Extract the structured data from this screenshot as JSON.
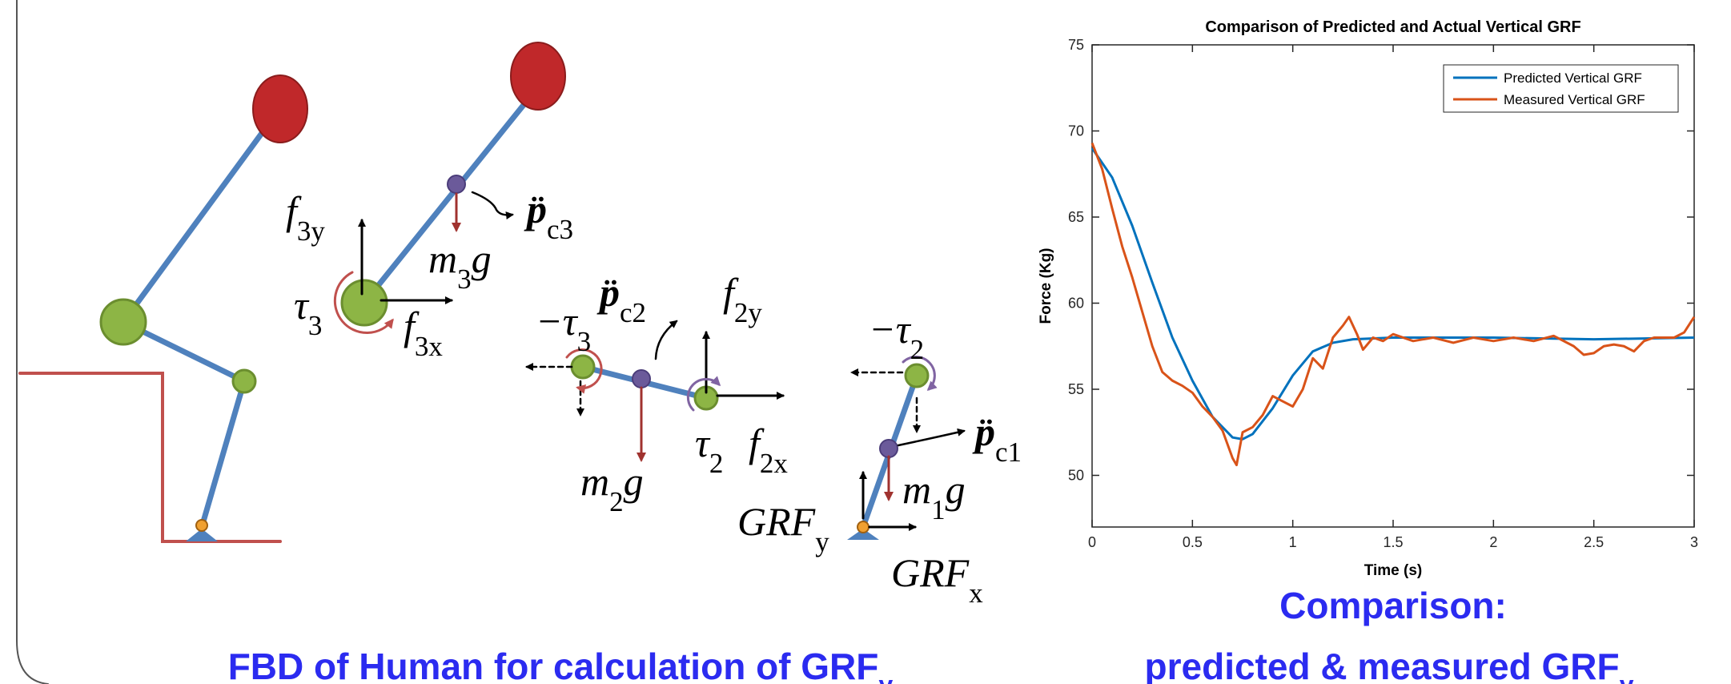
{
  "diagram": {
    "labels": [
      {
        "main": "f",
        "sub": "3y"
      },
      {
        "main": "τ",
        "sub": "3"
      },
      {
        "main": "f",
        "sub": "3x"
      },
      {
        "main": "m",
        "sub": "3",
        "after": "g"
      },
      {
        "main": "p̈",
        "sub": "c3"
      },
      {
        "main": "−τ",
        "sub": "3"
      },
      {
        "main": "p̈",
        "sub": "c2"
      },
      {
        "main": "f",
        "sub": "2y"
      },
      {
        "main": "τ",
        "sub": "2"
      },
      {
        "main": "f",
        "sub": "2x"
      },
      {
        "main": "m",
        "sub": "2",
        "after": "g"
      },
      {
        "main": "−τ",
        "sub": "2"
      },
      {
        "main": "p̈",
        "sub": "c1"
      },
      {
        "main": "m",
        "sub": "1",
        "after": "g"
      },
      {
        "main": "GRF",
        "sub": "y"
      },
      {
        "main": "GRF",
        "sub": "x"
      }
    ],
    "caption": {
      "text": "FBD of Human for calculation of GRF",
      "sub": "y"
    }
  },
  "chart_caption": {
    "line1": "Comparison:",
    "line2": "predicted & measured GRF",
    "sub": "y"
  },
  "chart_data": {
    "type": "line",
    "title": "Comparison of Predicted and Actual Vertical GRF",
    "x_label": "Time (s)",
    "y_label": "Force (Kg)",
    "xlim": [
      0,
      3
    ],
    "ylim": [
      47,
      75
    ],
    "xticks": [
      0,
      0.5,
      1,
      1.5,
      2,
      2.5,
      3
    ],
    "yticks": [
      50,
      55,
      60,
      65,
      70,
      75
    ],
    "grid": false,
    "legend": "upper right",
    "series": [
      {
        "name": "Predicted Vertical GRF",
        "color": "#0072bd",
        "x": [
          0,
          0.1,
          0.2,
          0.3,
          0.4,
          0.5,
          0.6,
          0.7,
          0.75,
          0.8,
          0.9,
          1.0,
          1.1,
          1.2,
          1.3,
          1.5,
          2,
          2.5,
          3
        ],
        "values": [
          69,
          67.3,
          64.5,
          61.2,
          58,
          55.5,
          53.4,
          52.2,
          52.1,
          52.4,
          53.9,
          55.8,
          57.2,
          57.7,
          57.9,
          58,
          58,
          57.9,
          58
        ]
      },
      {
        "name": "Measured Vertical GRF",
        "color": "#d95319",
        "x": [
          0,
          0.05,
          0.1,
          0.15,
          0.2,
          0.25,
          0.3,
          0.35,
          0.4,
          0.45,
          0.5,
          0.55,
          0.6,
          0.65,
          0.7,
          0.72,
          0.75,
          0.8,
          0.85,
          0.9,
          0.95,
          1.0,
          1.05,
          1.1,
          1.15,
          1.2,
          1.25,
          1.28,
          1.32,
          1.35,
          1.4,
          1.45,
          1.5,
          1.6,
          1.7,
          1.8,
          1.9,
          2.0,
          2.1,
          2.2,
          2.3,
          2.4,
          2.45,
          2.5,
          2.55,
          2.6,
          2.65,
          2.7,
          2.75,
          2.8,
          2.9,
          2.95,
          3.0
        ],
        "values": [
          69.3,
          67.8,
          65.5,
          63.3,
          61.5,
          59.5,
          57.5,
          56,
          55.5,
          55.2,
          54.8,
          54,
          53.4,
          52.6,
          51,
          50.6,
          52.5,
          52.8,
          53.5,
          54.6,
          54.3,
          54,
          55,
          56.8,
          56.2,
          58,
          58.7,
          59.2,
          58.2,
          57.3,
          58,
          57.8,
          58.2,
          57.8,
          58,
          57.7,
          58,
          57.8,
          58,
          57.8,
          58.1,
          57.5,
          57,
          57.1,
          57.5,
          57.6,
          57.5,
          57.2,
          57.8,
          58,
          58,
          58.3,
          59.2
        ]
      }
    ]
  }
}
